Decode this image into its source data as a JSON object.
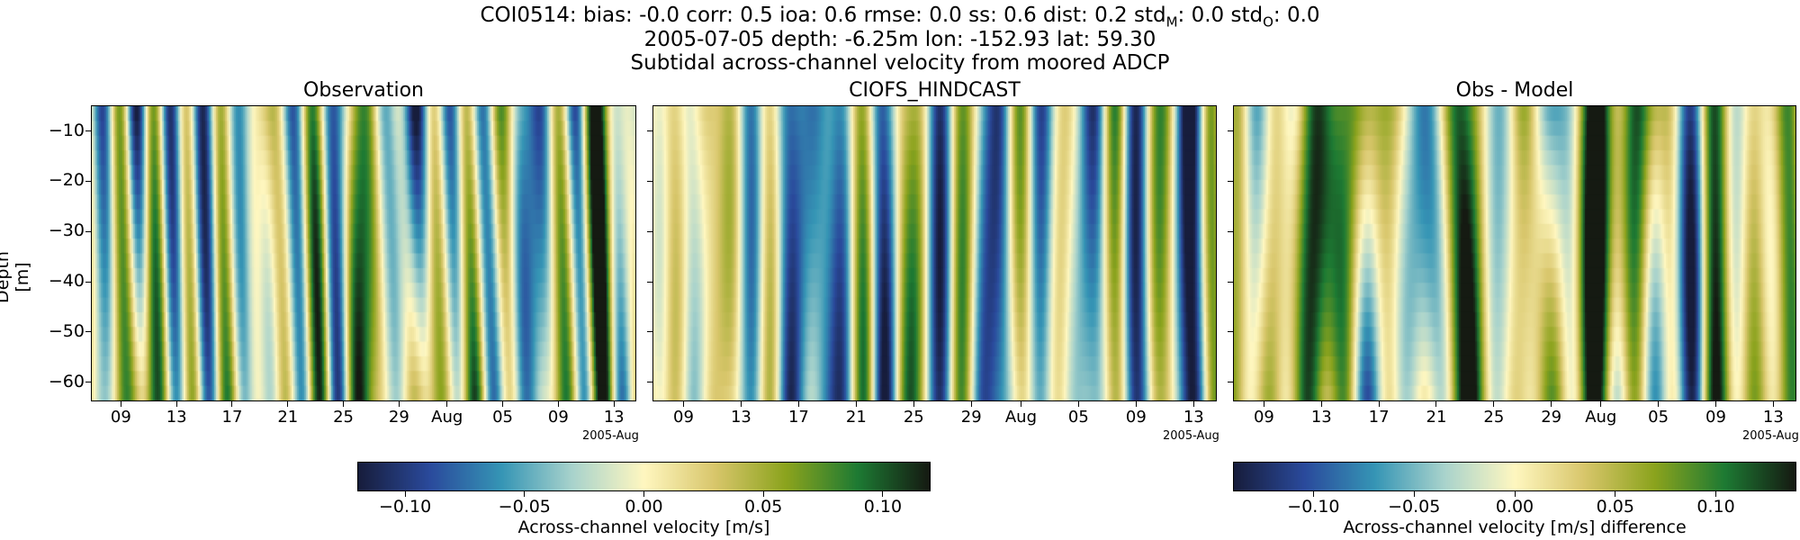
{
  "header": {
    "line1": "COI0514: bias: -0.0  corr: 0.5  ioa: 0.6  rmse: 0.0  ss: 0.6  dist: 0.2  std",
    "std_m_sub": "M",
    "line1_mid": ": 0.0  std",
    "std_o_sub": "O",
    "line1_end": ": 0.0",
    "line2": "2005-07-05 depth: -6.25m lon: -152.93 lat: 59.30",
    "line3": "Subtidal across-channel velocity from moored ADCP"
  },
  "colors": {
    "deep_cmap": [
      "#171d3c",
      "#2a4a9c",
      "#3595b5",
      "#a9d3cc",
      "#fff7c0",
      "#d8c66b",
      "#8ba31d",
      "#1d7a33",
      "#151a12"
    ]
  },
  "chart_data": [
    {
      "type": "heatmap",
      "title": "Observation",
      "ylabel": "Depth [m]",
      "yticks": [
        "−10",
        "−20",
        "−30",
        "−40",
        "−50",
        "−60"
      ],
      "ylim": [
        -65,
        -5
      ],
      "xticks": [
        "09",
        "13",
        "17",
        "21",
        "25",
        "29",
        "Aug",
        "05",
        "09",
        "13"
      ],
      "x_offset_label": "2005-Aug",
      "time_range": [
        "2005-07-06",
        "2005-08-14"
      ],
      "depth_levels": 20,
      "seed": 11
    },
    {
      "type": "heatmap",
      "title": "CIOFS_HINDCAST",
      "xticks": [
        "09",
        "13",
        "17",
        "21",
        "25",
        "29",
        "Aug",
        "05",
        "09",
        "13"
      ],
      "x_offset_label": "2005-Aug",
      "time_range": [
        "2005-07-06",
        "2005-08-14"
      ],
      "depth_levels": 20,
      "seed": 23
    },
    {
      "type": "heatmap",
      "title": "Obs - Model",
      "xticks": [
        "09",
        "13",
        "17",
        "21",
        "25",
        "29",
        "Aug",
        "05",
        "09",
        "13"
      ],
      "x_offset_label": "2005-Aug",
      "time_range": [
        "2005-07-06",
        "2005-08-14"
      ],
      "depth_levels": 20,
      "seed": 37
    }
  ],
  "colorbars": [
    {
      "ticks": [
        "−0.10",
        "−0.05",
        "0.00",
        "0.05",
        "0.10"
      ],
      "range": [
        -0.12,
        0.12
      ],
      "tick_values": [
        -0.1,
        -0.05,
        0.0,
        0.05,
        0.1
      ],
      "label": "Across-channel velocity [m/s]"
    },
    {
      "ticks": [
        "−0.10",
        "−0.05",
        "0.00",
        "0.05",
        "0.10"
      ],
      "range": [
        -0.14,
        0.14
      ],
      "tick_values": [
        -0.1,
        -0.05,
        0.0,
        0.05,
        0.1
      ],
      "label": "Across-channel velocity [m/s] difference"
    }
  ]
}
